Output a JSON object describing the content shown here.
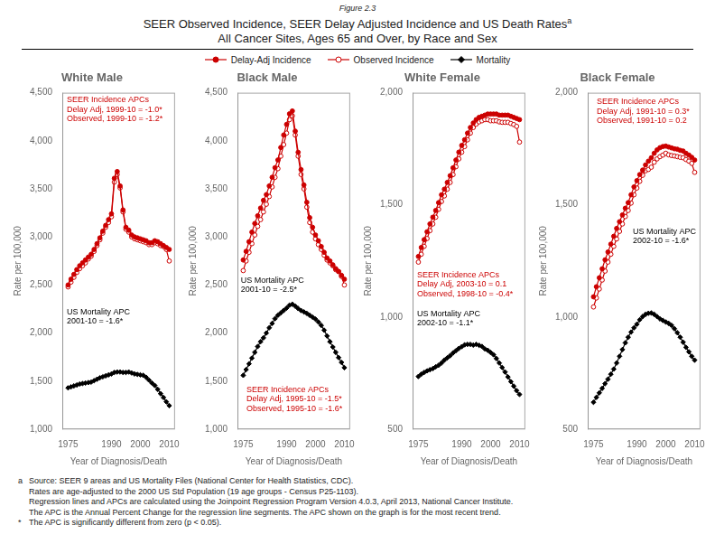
{
  "figure_label": "Figure 2.3",
  "title": "SEER Observed Incidence, SEER Delay Adjusted Incidence and US Death Rates",
  "title_superscript": "a",
  "subtitle": "All Cancer Sites, Ages 65 and Over, by Race and Sex",
  "footnotes": [
    {
      "marker": "a",
      "text": "Source: SEER 9 areas and US Mortality Files (National Center for Health Statistics, CDC)."
    },
    {
      "text": "Rates are age-adjusted to the 2000 US Std Population (19 age groups - Census P25-1103)."
    },
    {
      "text": "Regression lines and APCs are calculated using the Joinpoint Regression Program Version 4.0.3, April 2013, National Cancer Institute."
    },
    {
      "text": "The APC is the Annual Percent Change for the regression line segments. The APC shown on the graph is for the most recent trend."
    },
    {
      "marker": "*",
      "text": "The APC is significantly different from zero (p < 0.05)."
    }
  ],
  "chart_data": [
    {
      "type": "line",
      "title": "White Male",
      "xlabel": "Year of Diagnosis/Death",
      "ylabel": "Rate per 100,000",
      "legend": "top",
      "grid": false,
      "xlim": [
        1973,
        2012
      ],
      "xticks": [
        1975,
        1990,
        2000,
        2010
      ],
      "ylim": [
        1000,
        4500
      ],
      "yticks": [
        {
          "value": 1000,
          "label": "1,000"
        },
        {
          "value": 1500,
          "label": "1,500"
        },
        {
          "value": 2000,
          "label": "2,000"
        },
        {
          "value": 2500,
          "label": "2,500"
        },
        {
          "value": 3000,
          "label": "3,000"
        },
        {
          "value": 3500,
          "label": "3,500"
        },
        {
          "value": 4000,
          "label": "4,000"
        },
        {
          "value": 4500,
          "label": "4,500"
        }
      ],
      "x": [
        1975,
        1976,
        1977,
        1978,
        1979,
        1980,
        1981,
        1982,
        1983,
        1984,
        1985,
        1986,
        1987,
        1988,
        1989,
        1990,
        1991,
        1992,
        1993,
        1994,
        1995,
        1996,
        1997,
        1998,
        1999,
        2000,
        2001,
        2002,
        2003,
        2004,
        2005,
        2006,
        2007,
        2008,
        2009,
        2010
      ],
      "series": [
        {
          "name": "Delay-Adj Incidence",
          "color": "#CC0000",
          "marker": "circle",
          "line_style": "solid",
          "values": [
            2500,
            2560,
            2610,
            2660,
            2700,
            2730,
            2760,
            2790,
            2820,
            2870,
            2930,
            2990,
            3060,
            3120,
            3180,
            3240,
            3610,
            3680,
            3530,
            3280,
            3100,
            3070,
            3020,
            3000,
            2990,
            2980,
            2970,
            2960,
            2940,
            2940,
            2960,
            2950,
            2930,
            2910,
            2890,
            2870
          ]
        },
        {
          "name": "Observed Incidence",
          "color": "#CC0000",
          "marker": "open_circle",
          "line_style": "solid",
          "values": [
            2480,
            2530,
            2580,
            2630,
            2670,
            2700,
            2730,
            2770,
            2800,
            2850,
            2910,
            2970,
            3040,
            3100,
            3150,
            3210,
            3570,
            3650,
            3510,
            3260,
            3080,
            3050,
            3000,
            2980,
            2970,
            2960,
            2950,
            2940,
            2920,
            2920,
            2940,
            2930,
            2910,
            2900,
            2870,
            2750
          ]
        },
        {
          "name": "Mortality",
          "color": "#000000",
          "marker": "diamond",
          "line_style": "solid",
          "values": [
            1430,
            1440,
            1450,
            1460,
            1470,
            1475,
            1480,
            1485,
            1490,
            1505,
            1520,
            1535,
            1545,
            1555,
            1565,
            1575,
            1590,
            1595,
            1595,
            1590,
            1590,
            1595,
            1585,
            1575,
            1570,
            1565,
            1560,
            1540,
            1510,
            1480,
            1455,
            1415,
            1370,
            1330,
            1285,
            1245
          ]
        }
      ],
      "annotations": [
        {
          "text": "SEER Incidence APCs\nDelay Adj, 1999-10 = -1.0*\nObserved, 1999-10 = -1.2*",
          "color": "#CC0000"
        },
        {
          "text": "US Mortality APC\n2001-10 = -1.6*",
          "color": "#000000"
        }
      ]
    },
    {
      "type": "line",
      "title": "Black Male",
      "xlabel": "Year of Diagnosis/Death",
      "ylabel": "Rate per 100,000",
      "grid": false,
      "xlim": [
        1973,
        2012
      ],
      "xticks": [
        1975,
        1990,
        2000,
        2010
      ],
      "ylim": [
        1000,
        4500
      ],
      "yticks": [
        {
          "value": 1000,
          "label": "1,000"
        },
        {
          "value": 1500,
          "label": "1,500"
        },
        {
          "value": 2000,
          "label": "2,000"
        },
        {
          "value": 2500,
          "label": "2,500"
        },
        {
          "value": 3000,
          "label": "3,000"
        },
        {
          "value": 3500,
          "label": "3,500"
        },
        {
          "value": 4000,
          "label": "4,000"
        },
        {
          "value": 4500,
          "label": "4,500"
        }
      ],
      "x": [
        1975,
        1976,
        1977,
        1978,
        1979,
        1980,
        1981,
        1982,
        1983,
        1984,
        1985,
        1986,
        1987,
        1988,
        1989,
        1990,
        1991,
        1992,
        1993,
        1994,
        1995,
        1996,
        1997,
        1998,
        1999,
        2000,
        2001,
        2002,
        2003,
        2004,
        2005,
        2006,
        2007,
        2008,
        2009,
        2010
      ],
      "series": [
        {
          "name": "Delay-Adj Incidence",
          "color": "#CC0000",
          "marker": "circle",
          "line_style": "solid",
          "values": [
            2760,
            2850,
            2950,
            3050,
            3140,
            3220,
            3300,
            3380,
            3440,
            3530,
            3620,
            3720,
            3800,
            3930,
            4060,
            4170,
            4280,
            4310,
            4100,
            3880,
            3700,
            3540,
            3360,
            3200,
            3100,
            3020,
            2960,
            2900,
            2840,
            2780,
            2750,
            2710,
            2670,
            2640,
            2600,
            2560
          ]
        },
        {
          "name": "Observed Incidence",
          "color": "#CC0000",
          "marker": "open_circle",
          "line_style": "solid",
          "values": [
            2650,
            2750,
            2840,
            2930,
            3020,
            3110,
            3180,
            3260,
            3340,
            3420,
            3520,
            3620,
            3710,
            3840,
            3960,
            4080,
            4220,
            4260,
            4060,
            3840,
            3650,
            3500,
            3310,
            3150,
            3050,
            2980,
            2920,
            2870,
            2810,
            2760,
            2730,
            2700,
            2660,
            2640,
            2590,
            2500
          ]
        },
        {
          "name": "Mortality",
          "color": "#000000",
          "marker": "diamond",
          "line_style": "solid",
          "values": [
            1560,
            1620,
            1680,
            1740,
            1800,
            1860,
            1910,
            1950,
            2000,
            2055,
            2100,
            2150,
            2185,
            2210,
            2235,
            2260,
            2290,
            2300,
            2280,
            2255,
            2235,
            2220,
            2205,
            2185,
            2165,
            2145,
            2115,
            2080,
            2030,
            1970,
            1910,
            1855,
            1800,
            1745,
            1695,
            1640
          ]
        }
      ],
      "annotations": [
        {
          "text": "SEER Incidence APCs\nDelay Adj, 1995-10 = -1.5*\nObserved, 1995-10 = -1.6*",
          "color": "#CC0000"
        },
        {
          "text": "US Mortality APC\n2001-10 = -2.5*",
          "color": "#000000"
        }
      ]
    },
    {
      "type": "line",
      "title": "White Female",
      "xlabel": "Year of Diagnosis/Death",
      "ylabel": "Rate per 100,000",
      "grid": false,
      "xlim": [
        1973,
        2012
      ],
      "xticks": [
        1975,
        1990,
        2000,
        2010
      ],
      "ylim": [
        500,
        2000
      ],
      "yticks": [
        500,
        {
          "value": 1000,
          "label": "1,000"
        },
        {
          "value": 1500,
          "label": "1,500"
        },
        {
          "value": 2000,
          "label": "2,000"
        }
      ],
      "x": [
        1975,
        1976,
        1977,
        1978,
        1979,
        1980,
        1981,
        1982,
        1983,
        1984,
        1985,
        1986,
        1987,
        1988,
        1989,
        1990,
        1991,
        1992,
        1993,
        1994,
        1995,
        1996,
        1997,
        1998,
        1999,
        2000,
        2001,
        2002,
        2003,
        2004,
        2005,
        2006,
        2007,
        2008,
        2009,
        2010
      ],
      "series": [
        {
          "name": "Delay-Adj Incidence",
          "color": "#CC0000",
          "marker": "circle",
          "line_style": "solid",
          "values": [
            1270,
            1310,
            1345,
            1380,
            1415,
            1445,
            1475,
            1510,
            1545,
            1570,
            1600,
            1630,
            1665,
            1700,
            1735,
            1765,
            1790,
            1820,
            1845,
            1865,
            1880,
            1890,
            1895,
            1900,
            1905,
            1905,
            1905,
            1905,
            1900,
            1900,
            1900,
            1900,
            1895,
            1890,
            1885,
            1880
          ]
        },
        {
          "name": "Observed Incidence",
          "color": "#CC0000",
          "marker": "open_circle",
          "line_style": "solid",
          "values": [
            1245,
            1280,
            1315,
            1350,
            1385,
            1415,
            1445,
            1480,
            1515,
            1540,
            1570,
            1600,
            1635,
            1670,
            1705,
            1735,
            1760,
            1790,
            1820,
            1845,
            1860,
            1870,
            1875,
            1880,
            1880,
            1875,
            1875,
            1875,
            1870,
            1868,
            1868,
            1868,
            1863,
            1858,
            1850,
            1780
          ]
        },
        {
          "name": "Mortality",
          "color": "#000000",
          "marker": "diamond",
          "line_style": "solid",
          "values": [
            735,
            745,
            753,
            760,
            765,
            770,
            778,
            785,
            795,
            808,
            818,
            828,
            840,
            850,
            860,
            868,
            876,
            878,
            878,
            875,
            878,
            874,
            869,
            858,
            852,
            842,
            832,
            815,
            795,
            775,
            755,
            733,
            712,
            692,
            672,
            655
          ]
        }
      ],
      "annotations": [
        {
          "text": "SEER Incidence APCs\nDelay Adj, 2003-10 = 0.1\nObserved, 1998-10 = -0.4*",
          "color": "#CC0000"
        },
        {
          "text": "US Mortality APC\n2002-10 = -1.1*",
          "color": "#000000"
        }
      ]
    },
    {
      "type": "line",
      "title": "Black Female",
      "xlabel": "Year of Diagnosis/Death",
      "ylabel": "Rate per 100,000",
      "grid": false,
      "xlim": [
        1973,
        2012
      ],
      "xticks": [
        1975,
        1990,
        2000,
        2010
      ],
      "ylim": [
        500,
        2000
      ],
      "yticks": [
        500,
        {
          "value": 1000,
          "label": "1,000"
        },
        {
          "value": 1500,
          "label": "1,500"
        },
        {
          "value": 2000,
          "label": "2,000"
        }
      ],
      "x": [
        1975,
        1976,
        1977,
        1978,
        1979,
        1980,
        1981,
        1982,
        1983,
        1984,
        1985,
        1986,
        1987,
        1988,
        1989,
        1990,
        1991,
        1992,
        1993,
        1994,
        1995,
        1996,
        1997,
        1998,
        1999,
        2000,
        2001,
        2002,
        2003,
        2004,
        2005,
        2006,
        2007,
        2008,
        2009,
        2010
      ],
      "series": [
        {
          "name": "Delay-Adj Incidence",
          "color": "#CC0000",
          "marker": "circle",
          "line_style": "solid",
          "values": [
            1090,
            1135,
            1175,
            1215,
            1255,
            1290,
            1325,
            1360,
            1395,
            1425,
            1455,
            1485,
            1510,
            1545,
            1580,
            1608,
            1635,
            1655,
            1678,
            1695,
            1710,
            1730,
            1745,
            1755,
            1760,
            1762,
            1758,
            1754,
            1750,
            1748,
            1743,
            1740,
            1730,
            1722,
            1712,
            1700
          ]
        },
        {
          "name": "Observed Incidence",
          "color": "#CC0000",
          "marker": "open_circle",
          "line_style": "solid",
          "values": [
            1045,
            1085,
            1125,
            1165,
            1205,
            1245,
            1280,
            1315,
            1348,
            1382,
            1415,
            1448,
            1475,
            1508,
            1545,
            1575,
            1605,
            1632,
            1652,
            1658,
            1668,
            1690,
            1705,
            1715,
            1722,
            1730,
            1723,
            1720,
            1718,
            1715,
            1712,
            1710,
            1702,
            1695,
            1685,
            1645
          ]
        },
        {
          "name": "Mortality",
          "color": "#000000",
          "marker": "diamond",
          "line_style": "solid",
          "values": [
            620,
            642,
            662,
            682,
            703,
            723,
            745,
            768,
            795,
            825,
            855,
            885,
            910,
            933,
            952,
            968,
            988,
            1002,
            1012,
            1017,
            1018,
            1012,
            1002,
            992,
            985,
            978,
            972,
            963,
            948,
            930,
            910,
            888,
            865,
            845,
            825,
            808
          ]
        }
      ],
      "annotations": [
        {
          "text": "SEER Incidence APCs\nDelay Adj, 1991-10 = 0.3*\nObserved, 1991-10 = 0.2",
          "color": "#CC0000"
        },
        {
          "text": "US Mortality APC\n2002-10 = -1.6*",
          "color": "#000000"
        }
      ]
    }
  ]
}
